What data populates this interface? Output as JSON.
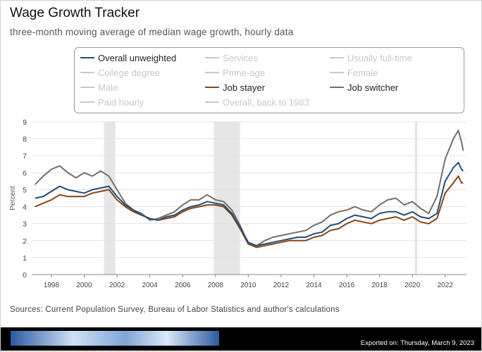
{
  "title": "Wage Growth Tracker",
  "subtitle": "three-month moving average of median wage growth, hourly data",
  "sources": "Sources: Current Population Survey, Bureau of Labor Statistics and author's calculations",
  "exported": "Exported on: Thursday, March 9, 2023",
  "legend": [
    {
      "label": "Overall unweighted",
      "color": "#1f4e79",
      "active": true
    },
    {
      "label": "Services",
      "color": "#c8c8c8",
      "active": false
    },
    {
      "label": "Usually full-time",
      "color": "#c8c8c8",
      "active": false
    },
    {
      "label": "College degree",
      "color": "#c8c8c8",
      "active": false
    },
    {
      "label": "Prime-age",
      "color": "#c8c8c8",
      "active": false
    },
    {
      "label": "Female",
      "color": "#c8c8c8",
      "active": false
    },
    {
      "label": "Male",
      "color": "#c8c8c8",
      "active": false
    },
    {
      "label": "Job stayer",
      "color": "#8b4513",
      "active": true
    },
    {
      "label": "Job switcher",
      "color": "#7a6e64",
      "active": true
    },
    {
      "label": "Paid hourly",
      "color": "#c8c8c8",
      "active": false
    },
    {
      "label": "Overall, back to 1983",
      "color": "#c8c8c8",
      "active": false
    }
  ],
  "chart_data": {
    "type": "line",
    "ylabel": "Percent",
    "xlabel": "",
    "ylim": [
      0,
      9
    ],
    "xlim": [
      1996.8,
      2023.3
    ],
    "yticks": [
      0,
      1,
      2,
      3,
      4,
      5,
      6,
      7,
      8,
      9
    ],
    "xticks": [
      1998,
      2000,
      2002,
      2004,
      2006,
      2008,
      2010,
      2012,
      2014,
      2016,
      2018,
      2020,
      2022
    ],
    "grid": true,
    "recessions": [
      [
        2001.2,
        2001.9
      ],
      [
        2007.9,
        2009.5
      ],
      [
        2020.15,
        2020.3
      ]
    ],
    "series": [
      {
        "name": "Overall unweighted",
        "color": "#1f4e79",
        "points": [
          [
            1997.0,
            4.5
          ],
          [
            1997.5,
            4.6
          ],
          [
            1998.0,
            4.9
          ],
          [
            1998.5,
            5.2
          ],
          [
            1999.0,
            5.0
          ],
          [
            1999.5,
            4.9
          ],
          [
            2000.0,
            4.8
          ],
          [
            2000.5,
            5.0
          ],
          [
            2001.0,
            5.1
          ],
          [
            2001.5,
            5.2
          ],
          [
            2002.0,
            4.6
          ],
          [
            2002.5,
            4.1
          ],
          [
            2003.0,
            3.8
          ],
          [
            2003.5,
            3.5
          ],
          [
            2004.0,
            3.3
          ],
          [
            2004.5,
            3.2
          ],
          [
            2005.0,
            3.4
          ],
          [
            2005.5,
            3.5
          ],
          [
            2006.0,
            3.8
          ],
          [
            2006.5,
            4.0
          ],
          [
            2007.0,
            4.1
          ],
          [
            2007.5,
            4.3
          ],
          [
            2008.0,
            4.2
          ],
          [
            2008.5,
            4.1
          ],
          [
            2009.0,
            3.6
          ],
          [
            2009.5,
            2.8
          ],
          [
            2010.0,
            1.9
          ],
          [
            2010.5,
            1.7
          ],
          [
            2011.0,
            1.8
          ],
          [
            2011.5,
            1.9
          ],
          [
            2012.0,
            2.0
          ],
          [
            2012.5,
            2.1
          ],
          [
            2013.0,
            2.2
          ],
          [
            2013.5,
            2.2
          ],
          [
            2014.0,
            2.4
          ],
          [
            2014.5,
            2.5
          ],
          [
            2015.0,
            2.9
          ],
          [
            2015.5,
            3.0
          ],
          [
            2016.0,
            3.3
          ],
          [
            2016.5,
            3.5
          ],
          [
            2017.0,
            3.4
          ],
          [
            2017.5,
            3.3
          ],
          [
            2018.0,
            3.6
          ],
          [
            2018.5,
            3.7
          ],
          [
            2019.0,
            3.7
          ],
          [
            2019.5,
            3.5
          ],
          [
            2020.0,
            3.7
          ],
          [
            2020.5,
            3.4
          ],
          [
            2021.0,
            3.3
          ],
          [
            2021.5,
            3.6
          ],
          [
            2022.0,
            5.5
          ],
          [
            2022.5,
            6.3
          ],
          [
            2022.8,
            6.6
          ],
          [
            2023.0,
            6.2
          ],
          [
            2023.1,
            6.1
          ]
        ]
      },
      {
        "name": "Job stayer",
        "color": "#8b4513",
        "points": [
          [
            1997.0,
            4.0
          ],
          [
            1997.5,
            4.2
          ],
          [
            1998.0,
            4.4
          ],
          [
            1998.5,
            4.7
          ],
          [
            1999.0,
            4.6
          ],
          [
            1999.5,
            4.6
          ],
          [
            2000.0,
            4.6
          ],
          [
            2000.5,
            4.8
          ],
          [
            2001.0,
            4.9
          ],
          [
            2001.5,
            5.0
          ],
          [
            2002.0,
            4.4
          ],
          [
            2002.5,
            4.0
          ],
          [
            2003.0,
            3.7
          ],
          [
            2003.5,
            3.5
          ],
          [
            2004.0,
            3.3
          ],
          [
            2004.5,
            3.2
          ],
          [
            2005.0,
            3.3
          ],
          [
            2005.5,
            3.4
          ],
          [
            2006.0,
            3.7
          ],
          [
            2006.5,
            3.9
          ],
          [
            2007.0,
            4.0
          ],
          [
            2007.5,
            4.1
          ],
          [
            2008.0,
            4.1
          ],
          [
            2008.5,
            4.0
          ],
          [
            2009.0,
            3.5
          ],
          [
            2009.5,
            2.7
          ],
          [
            2010.0,
            1.8
          ],
          [
            2010.5,
            1.6
          ],
          [
            2011.0,
            1.7
          ],
          [
            2011.5,
            1.8
          ],
          [
            2012.0,
            1.9
          ],
          [
            2012.5,
            2.0
          ],
          [
            2013.0,
            2.0
          ],
          [
            2013.5,
            2.0
          ],
          [
            2014.0,
            2.2
          ],
          [
            2014.5,
            2.3
          ],
          [
            2015.0,
            2.6
          ],
          [
            2015.5,
            2.7
          ],
          [
            2016.0,
            3.0
          ],
          [
            2016.5,
            3.2
          ],
          [
            2017.0,
            3.1
          ],
          [
            2017.5,
            3.0
          ],
          [
            2018.0,
            3.2
          ],
          [
            2018.5,
            3.3
          ],
          [
            2019.0,
            3.4
          ],
          [
            2019.5,
            3.2
          ],
          [
            2020.0,
            3.4
          ],
          [
            2020.5,
            3.1
          ],
          [
            2021.0,
            3.0
          ],
          [
            2021.5,
            3.3
          ],
          [
            2022.0,
            4.8
          ],
          [
            2022.5,
            5.4
          ],
          [
            2022.8,
            5.8
          ],
          [
            2023.0,
            5.4
          ],
          [
            2023.1,
            5.4
          ]
        ]
      },
      {
        "name": "Job switcher",
        "color": "#7a6e64",
        "points": [
          [
            1997.0,
            5.3
          ],
          [
            1997.5,
            5.8
          ],
          [
            1998.0,
            6.2
          ],
          [
            1998.5,
            6.4
          ],
          [
            1999.0,
            6.0
          ],
          [
            1999.5,
            5.7
          ],
          [
            2000.0,
            6.0
          ],
          [
            2000.5,
            5.8
          ],
          [
            2001.0,
            6.1
          ],
          [
            2001.5,
            5.8
          ],
          [
            2002.0,
            5.0
          ],
          [
            2002.5,
            4.2
          ],
          [
            2003.0,
            3.8
          ],
          [
            2003.5,
            3.6
          ],
          [
            2004.0,
            3.2
          ],
          [
            2004.5,
            3.3
          ],
          [
            2005.0,
            3.5
          ],
          [
            2005.5,
            3.7
          ],
          [
            2006.0,
            4.1
          ],
          [
            2006.5,
            4.4
          ],
          [
            2007.0,
            4.4
          ],
          [
            2007.5,
            4.7
          ],
          [
            2008.0,
            4.4
          ],
          [
            2008.5,
            4.3
          ],
          [
            2009.0,
            3.8
          ],
          [
            2009.5,
            2.9
          ],
          [
            2010.0,
            1.8
          ],
          [
            2010.5,
            1.7
          ],
          [
            2011.0,
            2.0
          ],
          [
            2011.5,
            2.2
          ],
          [
            2012.0,
            2.3
          ],
          [
            2012.5,
            2.4
          ],
          [
            2013.0,
            2.5
          ],
          [
            2013.5,
            2.6
          ],
          [
            2014.0,
            2.9
          ],
          [
            2014.5,
            3.1
          ],
          [
            2015.0,
            3.5
          ],
          [
            2015.5,
            3.7
          ],
          [
            2016.0,
            3.8
          ],
          [
            2016.5,
            4.0
          ],
          [
            2017.0,
            3.8
          ],
          [
            2017.5,
            3.7
          ],
          [
            2018.0,
            4.1
          ],
          [
            2018.5,
            4.4
          ],
          [
            2019.0,
            4.5
          ],
          [
            2019.5,
            4.1
          ],
          [
            2020.0,
            4.3
          ],
          [
            2020.5,
            3.9
          ],
          [
            2021.0,
            3.6
          ],
          [
            2021.5,
            4.6
          ],
          [
            2022.0,
            6.8
          ],
          [
            2022.5,
            8.0
          ],
          [
            2022.8,
            8.5
          ],
          [
            2023.0,
            7.8
          ],
          [
            2023.1,
            7.3
          ]
        ]
      }
    ]
  }
}
